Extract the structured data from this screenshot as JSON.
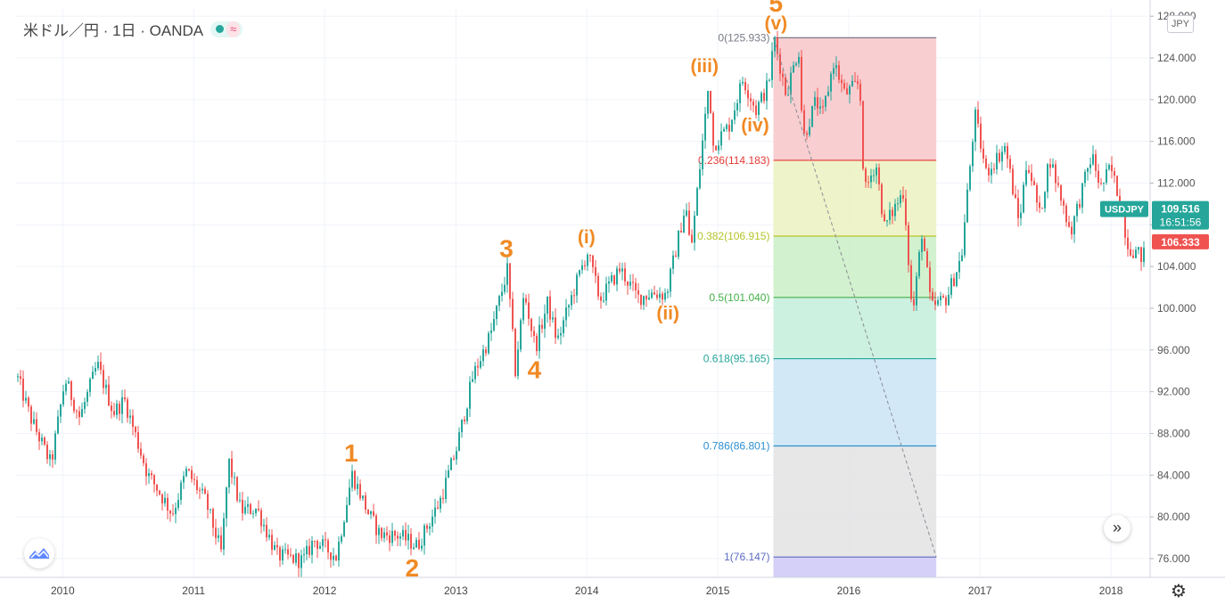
{
  "header": {
    "symbol": "米ドル／円 · 1日 · OANDA",
    "wave_icon_glyph": "≈"
  },
  "currency_label": "JPY",
  "ff_glyph": "»",
  "gear_glyph": "⚙",
  "chart_data": {
    "type": "candlestick",
    "title": "米ドル／円 · 1日 · OANDA",
    "ylim": [
      74.2,
      128.7
    ],
    "y_ticks": [
      "128.000",
      "124.000",
      "120.000",
      "116.000",
      "112.000",
      "108.000",
      "104.000",
      "100.000",
      "96.000",
      "92.000",
      "88.000",
      "84.000",
      "80.000",
      "76.000"
    ],
    "y_tick_values": [
      128,
      124,
      120,
      116,
      112,
      108,
      104,
      100,
      96,
      92,
      88,
      84,
      80,
      76
    ],
    "x_ticks": [
      "2010",
      "2011",
      "2012",
      "2013",
      "2014",
      "2015",
      "2016",
      "2017",
      "2018"
    ],
    "x_tick_dates": [
      "2010-01-01",
      "2011-01-01",
      "2012-01-01",
      "2013-01-01",
      "2014-01-01",
      "2015-01-01",
      "2016-01-01",
      "2017-01-01",
      "2018-01-01"
    ],
    "x_range": [
      "2009-08-24",
      "2018-04-20"
    ],
    "price_path": [
      [
        "2009-08-24",
        93.5
      ],
      [
        "2009-10-01",
        89.5
      ],
      [
        "2009-11-27",
        85.0
      ],
      [
        "2010-01-05",
        93.2
      ],
      [
        "2010-02-15",
        89.5
      ],
      [
        "2010-04-05",
        94.6
      ],
      [
        "2010-05-20",
        90.0
      ],
      [
        "2010-06-20",
        91.2
      ],
      [
        "2010-08-24",
        84.0
      ],
      [
        "2010-09-14",
        83.0
      ],
      [
        "2010-10-31",
        80.3
      ],
      [
        "2010-12-10",
        84.4
      ],
      [
        "2011-02-01",
        81.5
      ],
      [
        "2011-03-17",
        76.5
      ],
      [
        "2011-04-06",
        85.4
      ],
      [
        "2011-05-10",
        80.6
      ],
      [
        "2011-06-24",
        80.8
      ],
      [
        "2011-08-19",
        76.3
      ],
      [
        "2011-10-31",
        75.8
      ],
      [
        "2011-11-30",
        77.8
      ],
      [
        "2012-01-31",
        76.2
      ],
      [
        "2012-03-15",
        84.1
      ],
      [
        "2012-04-30",
        80.3
      ],
      [
        "2012-06-01",
        78.3
      ],
      [
        "2012-07-25",
        78.2
      ],
      [
        "2012-09-13",
        77.2
      ],
      [
        "2012-11-15",
        81.5
      ],
      [
        "2012-12-31",
        86.5
      ],
      [
        "2013-02-15",
        93.5
      ],
      [
        "2013-04-05",
        97.5
      ],
      [
        "2013-05-22",
        103.7
      ],
      [
        "2013-06-13",
        94.0
      ],
      [
        "2013-07-08",
        101.5
      ],
      [
        "2013-08-08",
        96.2
      ],
      [
        "2013-09-11",
        100.5
      ],
      [
        "2013-10-08",
        96.8
      ],
      [
        "2013-11-21",
        101.5
      ],
      [
        "2013-12-31",
        105.4
      ],
      [
        "2014-02-04",
        100.8
      ],
      [
        "2014-04-01",
        103.8
      ],
      [
        "2014-05-21",
        101.0
      ],
      [
        "2014-07-01",
        101.5
      ],
      [
        "2014-08-08",
        101.3
      ],
      [
        "2014-10-01",
        110.0
      ],
      [
        "2014-10-15",
        105.3
      ],
      [
        "2014-12-05",
        121.8
      ],
      [
        "2014-12-16",
        115.6
      ],
      [
        "2015-01-30",
        117.5
      ],
      [
        "2015-03-10",
        122.0
      ],
      [
        "2015-04-15",
        119.0
      ],
      [
        "2015-05-20",
        121.5
      ],
      [
        "2015-06-05",
        125.9
      ],
      [
        "2015-07-08",
        120.5
      ],
      [
        "2015-08-12",
        125.0
      ],
      [
        "2015-08-24",
        116.2
      ],
      [
        "2015-09-30",
        120.0
      ],
      [
        "2015-10-15",
        118.1
      ],
      [
        "2015-11-18",
        123.7
      ],
      [
        "2015-12-18",
        120.5
      ],
      [
        "2016-01-29",
        121.6
      ],
      [
        "2016-02-11",
        111.0
      ],
      [
        "2016-03-14",
        114.0
      ],
      [
        "2016-04-07",
        107.8
      ],
      [
        "2016-05-31",
        111.3
      ],
      [
        "2016-06-24",
        99.0
      ],
      [
        "2016-07-21",
        107.5
      ],
      [
        "2016-08-15",
        100.0
      ],
      [
        "2016-09-28",
        101.0
      ],
      [
        "2016-11-08",
        105.0
      ],
      [
        "2016-12-15",
        118.6
      ],
      [
        "2017-01-15",
        113.0
      ],
      [
        "2017-03-10",
        115.5
      ],
      [
        "2017-04-17",
        108.1
      ],
      [
        "2017-05-10",
        114.4
      ],
      [
        "2017-06-14",
        108.8
      ],
      [
        "2017-07-11",
        114.5
      ],
      [
        "2017-09-08",
        107.3
      ],
      [
        "2017-11-06",
        114.7
      ],
      [
        "2017-12-01",
        111.5
      ],
      [
        "2017-12-28",
        113.5
      ],
      [
        "2018-01-22",
        110.5
      ],
      [
        "2018-02-15",
        106.0
      ],
      [
        "2018-03-25",
        104.9
      ],
      [
        "2018-04-20",
        106.3
      ]
    ],
    "fibonacci": {
      "start_date": "2015-06-05",
      "end_date": "2016-09-01",
      "levels": [
        {
          "ratio": 0,
          "price": 125.933,
          "label": "0(125.933)",
          "color": "#787b86",
          "fill": "#f7c9cc"
        },
        {
          "ratio": 0.236,
          "price": 114.183,
          "label": "0.236(114.183)",
          "color": "#e53935",
          "fill": "#edf2c3"
        },
        {
          "ratio": 0.382,
          "price": 106.915,
          "label": "0.382(106.915)",
          "color": "#b5c52a",
          "fill": "#cdf0c9"
        },
        {
          "ratio": 0.5,
          "price": 101.04,
          "label": "0.5(101.040)",
          "color": "#43b049",
          "fill": "#c8efde"
        },
        {
          "ratio": 0.618,
          "price": 95.165,
          "label": "0.618(95.165)",
          "color": "#26a69a",
          "fill": "#cde6f5"
        },
        {
          "ratio": 0.786,
          "price": 86.801,
          "label": "0.786(86.801)",
          "color": "#2e8fd0",
          "fill": "#e4e4e6"
        },
        {
          "ratio": 1,
          "price": 76.147,
          "label": "1(76.147)",
          "color": "#5c6bc0",
          "fill": "#d4d0f7"
        }
      ]
    },
    "trend_line": {
      "from": [
        "2015-06-05",
        125.933
      ],
      "to": [
        "2016-09-01",
        76.147
      ]
    },
    "annotations": [
      {
        "text": "1",
        "date": "2012-03-15",
        "price": 84.1,
        "pos": "above",
        "size": "large"
      },
      {
        "text": "2",
        "date": "2012-09-01",
        "price": 77.2,
        "pos": "below",
        "size": "large"
      },
      {
        "text": "3",
        "date": "2013-05-22",
        "price": 103.7,
        "pos": "above",
        "size": "large"
      },
      {
        "text": "4",
        "date": "2013-08-08",
        "price": 96.2,
        "pos": "below",
        "size": "large"
      },
      {
        "text": "5",
        "date": "2015-06-12",
        "price": 125.9,
        "pos": "above2",
        "size": "large"
      },
      {
        "text": "(i)",
        "date": "2013-12-31",
        "price": 105.4,
        "pos": "above",
        "size": "small"
      },
      {
        "text": "(ii)",
        "date": "2014-08-15",
        "price": 101.0,
        "pos": "below",
        "size": "small"
      },
      {
        "text": "(iii)",
        "date": "2014-11-25",
        "price": 121.8,
        "pos": "above",
        "size": "small"
      },
      {
        "text": "(iv)",
        "date": "2015-04-15",
        "price": 119.0,
        "pos": "below",
        "size": "small"
      },
      {
        "text": "(v)",
        "date": "2015-06-12",
        "price": 125.9,
        "pos": "above",
        "size": "small"
      }
    ],
    "price_labels": [
      {
        "line1": "USDJPY",
        "line2": "",
        "price": 109.516,
        "value_text": "109.516",
        "sub_text": "16:51:56",
        "color": "#26a69a"
      },
      {
        "line1": "",
        "line2": "",
        "price": 106.333,
        "value_text": "106.333",
        "sub_text": "",
        "color": "#ef5350"
      }
    ],
    "up_color": "#26a69a",
    "down_color": "#ef5350",
    "annotation_color": "#f08a24",
    "grid": true
  }
}
